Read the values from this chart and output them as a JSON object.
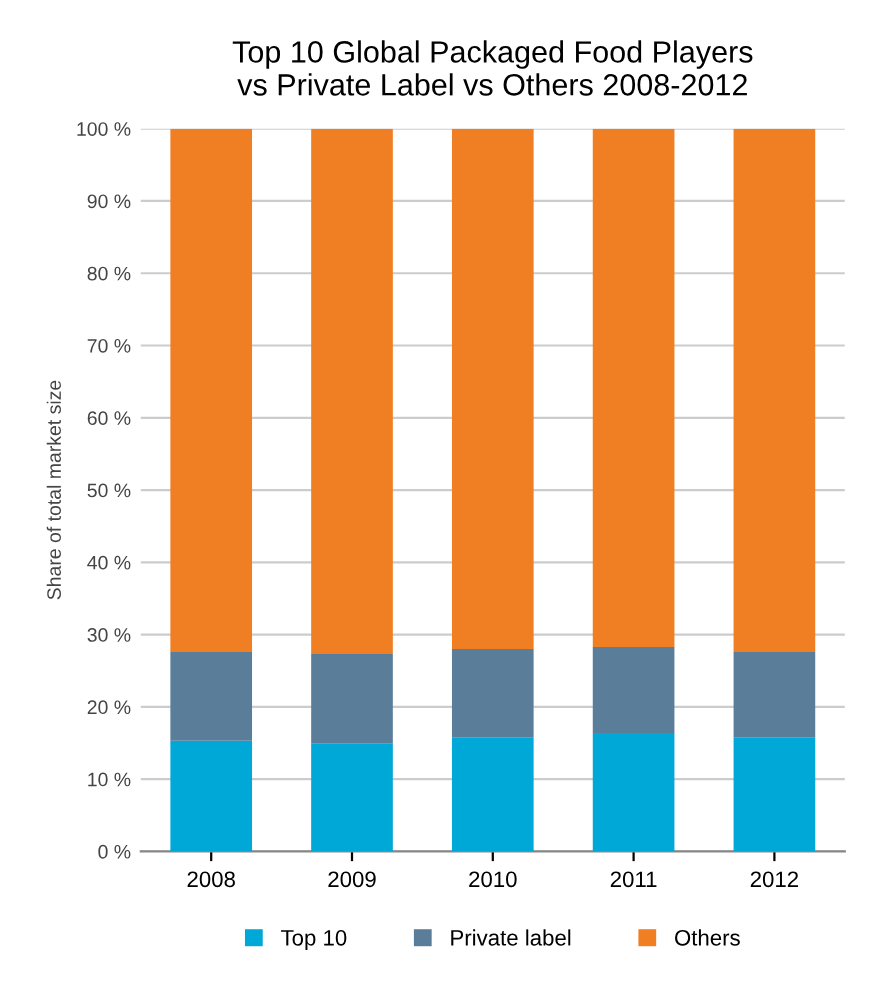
{
  "chart_data": {
    "type": "bar",
    "stacked": true,
    "title": "Top 10 Global Packaged Food Players\nvs Private Label vs Others 2008-2012",
    "ylabel": "Share of total market size",
    "categories": [
      "2008",
      "2009",
      "2010",
      "2011",
      "2012"
    ],
    "series": [
      {
        "name": "Top 10",
        "color": "#00a8d8",
        "values": [
          15.3,
          14.9,
          15.8,
          16.4,
          15.8
        ]
      },
      {
        "name": "Private label",
        "color": "#5a7e9a",
        "values": [
          12.3,
          12.4,
          12.2,
          11.9,
          11.8
        ]
      },
      {
        "name": "Others",
        "color": "#f07e22",
        "values": [
          72.4,
          72.7,
          72.0,
          71.7,
          72.4
        ]
      }
    ],
    "ylim": [
      0,
      100
    ],
    "yticks": [
      {
        "value": 0,
        "label": "0 %"
      },
      {
        "value": 10,
        "label": "10 %"
      },
      {
        "value": 20,
        "label": "20 %"
      },
      {
        "value": 30,
        "label": "30 %"
      },
      {
        "value": 40,
        "label": "40 %"
      },
      {
        "value": 50,
        "label": "50 %"
      },
      {
        "value": 60,
        "label": "60 %"
      },
      {
        "value": 70,
        "label": "70 %"
      },
      {
        "value": 80,
        "label": "80 %"
      },
      {
        "value": 90,
        "label": "90 %"
      },
      {
        "value": 100,
        "label": "100 %"
      }
    ],
    "grid": "y",
    "legend": "bottom"
  }
}
